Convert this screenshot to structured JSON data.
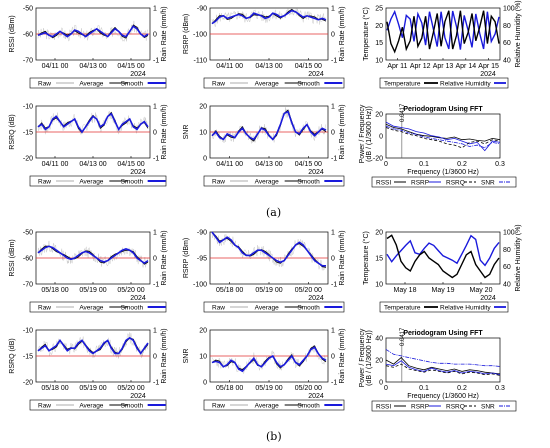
{
  "colors": {
    "raw": "#c8c8c8",
    "average": "#000000",
    "smooth": "#1a1adc",
    "rain_axis": "#8b1a8b",
    "humidity_axis": "#e0651a",
    "red_line": "#e03030",
    "fft_rssi": "#000000",
    "fft_rsrp": "#1a1adc",
    "fft_rsrq": "#000000",
    "fft_snr": "#1a1adc",
    "grid": "#dddddd"
  },
  "legends": {
    "signal": [
      "Raw",
      "Average",
      "Smooth"
    ],
    "temp": [
      "Temperature",
      "Relative Humidity"
    ],
    "fft": [
      "RSSI",
      "RSRP",
      "RSRQ",
      "SNR"
    ]
  },
  "captions": {
    "a": "(a)",
    "b": "(b)"
  },
  "common": {
    "rain_label": "Rain Rate (mm/h)",
    "rain_ticks": [
      "1",
      "0",
      "-1"
    ],
    "fft_title": "Periodogram Using FFT",
    "fft_xlabel": "Frequency (1/3600 Hz)",
    "fft_ylabel": "Power / Frequency (dB / (1/3600 Hz))",
    "fft_marker": "0.0417",
    "temp_label": "Temperature (°C)",
    "rh_label": "Relative Humidity (%)",
    "year": "2024"
  },
  "chart_data": [
    {
      "id": "a_rssi",
      "type": "line",
      "ylabel": "RSSI (dBm)",
      "yticks": [
        "-50",
        "-60",
        "-70"
      ],
      "ylim": [
        -70,
        -50
      ],
      "xticks": [
        "04/11 00",
        "04/13 00",
        "04/15 00"
      ],
      "values": [
        -60.5,
        -60,
        -59.5,
        -60.5,
        -61,
        -60,
        -59,
        -60,
        -61,
        -60,
        -58.5,
        -59,
        -60,
        -61,
        -60,
        -59,
        -58,
        -59,
        -60,
        -61,
        -59.5,
        -58,
        -59,
        -60.5,
        -61,
        -59,
        -57,
        -58,
        -60,
        -61,
        -60
      ]
    },
    {
      "id": "a_rsrp",
      "type": "line",
      "ylabel": "RSRP (dBm)",
      "yticks": [
        "-90",
        "-100",
        "-110"
      ],
      "ylim": [
        -110,
        -90
      ],
      "xticks": [
        "04/11 00",
        "04/13 00",
        "04/15 00"
      ],
      "values": [
        -96,
        -95,
        -93.5,
        -93,
        -94,
        -93.5,
        -93,
        -92.5,
        -93,
        -94,
        -93.5,
        -92,
        -92.5,
        -93,
        -94,
        -93.5,
        -92,
        -92.5,
        -93.5,
        -93,
        -92,
        -91,
        -91.5,
        -92.5,
        -93.5,
        -93,
        -93.5,
        -94,
        -94.5,
        -94,
        -94.5
      ]
    },
    {
      "id": "a_temp",
      "type": "line",
      "ylabel": "Temperature (°C)",
      "yticks": [
        "25",
        "20",
        "15",
        "10"
      ],
      "ylim": [
        8,
        27
      ],
      "rh_ticks": [
        "100",
        "80",
        "60",
        "40"
      ],
      "rh_lim": [
        30,
        100
      ],
      "xticks": [
        "Apr 11",
        "Apr 12",
        "Apr 13",
        "Apr 14",
        "Apr 15"
      ],
      "temperature": [
        22,
        14,
        11,
        15,
        20,
        12,
        15,
        24,
        13,
        16,
        24,
        12,
        18,
        25,
        13,
        22,
        26,
        12,
        17,
        26,
        14,
        18,
        25,
        15,
        20,
        26,
        14,
        24,
        22,
        14
      ],
      "humidity": [
        70,
        85,
        95,
        78,
        60,
        90,
        85,
        55,
        92,
        80,
        50,
        95,
        72,
        48,
        95,
        60,
        45,
        96,
        75,
        44,
        90,
        70,
        47,
        92,
        66,
        45,
        95,
        55,
        65,
        88
      ]
    },
    {
      "id": "a_rsrq",
      "type": "line",
      "ylabel": "RSRQ (dB)",
      "yticks": [
        "-10",
        "-15",
        "-20"
      ],
      "ylim": [
        -20,
        -10
      ],
      "xticks": [
        "04/11 00",
        "04/13 00",
        "04/15 00"
      ],
      "values": [
        -14,
        -13.5,
        -14.5,
        -14,
        -12.5,
        -12,
        -13,
        -14,
        -13.5,
        -13,
        -12.5,
        -14,
        -15,
        -14,
        -13,
        -12,
        -12.5,
        -14,
        -13.5,
        -12,
        -11.5,
        -13,
        -14.5,
        -13.5,
        -13,
        -12.5,
        -14,
        -14.5,
        -13.5,
        -13,
        -14
      ]
    },
    {
      "id": "a_snr",
      "type": "line",
      "ylabel": "SNR",
      "yticks": [
        "20",
        "10",
        "0"
      ],
      "ylim": [
        -4,
        24
      ],
      "xticks": [
        "04/11 00",
        "04/13 00",
        "04/15 00"
      ],
      "values": [
        8,
        10,
        7,
        6,
        9,
        8,
        7,
        10,
        12,
        9,
        7,
        6,
        9,
        12,
        11,
        8,
        6,
        9,
        14,
        20,
        21,
        15,
        10,
        9,
        12,
        14,
        10,
        8,
        10,
        12,
        11
      ]
    },
    {
      "id": "a_fft",
      "type": "line",
      "title": "Periodogram Using FFT",
      "ylabel": "Power / Frequency (dB / (1/3600 Hz))",
      "xlabel": "Frequency (1/3600 Hz)",
      "yticks": [
        "20",
        "0",
        "-20"
      ],
      "ylim": [
        -35,
        30
      ],
      "xticks": [
        "0",
        "0.1",
        "0.2",
        "0.3"
      ],
      "xlim": [
        0,
        0.3
      ],
      "x": [
        0,
        0.02,
        0.04,
        0.06,
        0.08,
        0.1,
        0.12,
        0.14,
        0.16,
        0.18,
        0.2,
        0.22,
        0.24,
        0.26,
        0.28,
        0.3
      ],
      "series": [
        {
          "name": "RSSI",
          "values": [
            15,
            10,
            8,
            4,
            0,
            -2,
            -3,
            -5,
            -6,
            -4,
            -8,
            -7,
            -9,
            -10,
            -6,
            -8
          ]
        },
        {
          "name": "RSRP",
          "values": [
            18,
            12,
            10,
            8,
            4,
            2,
            -2,
            -4,
            -8,
            -6,
            -10,
            -14,
            -12,
            -24,
            -10,
            -12
          ]
        },
        {
          "name": "RSRQ",
          "values": [
            10,
            6,
            4,
            0,
            -2,
            -6,
            -8,
            -10,
            -14,
            -16,
            -20,
            -12,
            -10,
            -14,
            -8,
            -10
          ]
        },
        {
          "name": "SNR",
          "values": [
            12,
            8,
            6,
            2,
            0,
            -4,
            -6,
            -8,
            -10,
            -12,
            -14,
            -18,
            -16,
            -20,
            -12,
            -14
          ]
        }
      ]
    },
    {
      "id": "b_rssi",
      "type": "line",
      "ylabel": "RSSI (dBm)",
      "yticks": [
        "-50",
        "-60",
        "-70"
      ],
      "ylim": [
        -70,
        -50
      ],
      "xticks": [
        "05/18 00",
        "05/19 00",
        "05/20 00"
      ],
      "values": [
        -58,
        -57,
        -56,
        -55.5,
        -56,
        -57,
        -58,
        -59,
        -60,
        -60.5,
        -60,
        -59,
        -58,
        -57.5,
        -58,
        -59,
        -60,
        -61,
        -61.5,
        -61,
        -60,
        -59,
        -58,
        -57,
        -56.5,
        -57,
        -58,
        -60,
        -61,
        -62,
        -61
      ]
    },
    {
      "id": "b_rsrp",
      "type": "line",
      "ylabel": "RSRP (dBm)",
      "yticks": [
        "-90",
        "-95",
        "-100"
      ],
      "ylim": [
        -100,
        -90
      ],
      "xticks": [
        "05/18 00",
        "05/19 00",
        "05/20 00"
      ],
      "values": [
        -90,
        -91,
        -92,
        -91.5,
        -91,
        -91.5,
        -92.5,
        -93,
        -94,
        -94.5,
        -94.5,
        -94,
        -93.5,
        -93.5,
        -94,
        -94.5,
        -95,
        -95.5,
        -95.8,
        -95.5,
        -94.5,
        -93.5,
        -92.5,
        -92,
        -92.5,
        -93.5,
        -94.5,
        -95.5,
        -96,
        -96.5,
        -96.5
      ]
    },
    {
      "id": "b_temp",
      "type": "line",
      "ylabel": "Temperature (°C)",
      "yticks": [
        "20",
        "15",
        "10"
      ],
      "ylim": [
        8,
        24
      ],
      "rh_ticks": [
        "100",
        "80",
        "60",
        "40"
      ],
      "rh_lim": [
        30,
        100
      ],
      "xticks": [
        "May 18",
        "May 19",
        "May 20"
      ],
      "temperature": [
        22,
        23,
        20,
        15,
        13,
        12,
        15,
        17,
        18,
        16,
        15,
        14,
        12,
        11,
        10,
        11,
        14,
        17,
        18,
        14,
        12,
        10,
        11,
        14,
        16
      ],
      "humidity": [
        70,
        60,
        68,
        75,
        82,
        88,
        72,
        70,
        78,
        85,
        82,
        75,
        68,
        65,
        62,
        58,
        70,
        82,
        95,
        90,
        62,
        55,
        65,
        78,
        86
      ]
    },
    {
      "id": "b_rsrq",
      "type": "line",
      "ylabel": "RSRQ (dB)",
      "yticks": [
        "-10",
        "-15",
        "-20"
      ],
      "ylim": [
        -20,
        -10
      ],
      "xticks": [
        "05/18 00",
        "05/19 00",
        "05/20 00"
      ],
      "values": [
        -14,
        -13.5,
        -13,
        -14,
        -13.5,
        -13,
        -12,
        -13,
        -14,
        -13.5,
        -13.5,
        -12.5,
        -12,
        -13,
        -14,
        -14.5,
        -14,
        -13.5,
        -12.5,
        -12,
        -13.5,
        -14.5,
        -14.5,
        -13.5,
        -12,
        -11.5,
        -12,
        -13.5,
        -14.5,
        -13.5,
        -12.5
      ]
    },
    {
      "id": "b_snr",
      "type": "line",
      "ylabel": "SNR",
      "yticks": [
        "20",
        "10",
        "0"
      ],
      "ylim": [
        -2,
        22
      ],
      "xticks": [
        "05/18 00",
        "05/19 00",
        "05/20 00"
      ],
      "values": [
        7,
        7.5,
        7,
        5,
        6,
        8,
        7,
        4,
        3,
        5,
        7,
        9,
        6,
        5,
        7,
        9,
        10,
        7,
        5,
        6,
        8,
        10,
        7,
        6,
        8,
        10,
        13,
        14,
        11,
        9,
        8
      ]
    },
    {
      "id": "b_fft",
      "type": "line",
      "title": "Periodogram Using FFT",
      "ylabel": "Power / Frequency (dB / (1/3600 Hz))",
      "xlabel": "Frequency (1/3600 Hz)",
      "yticks": [
        "40",
        "20",
        "0"
      ],
      "ylim": [
        -12,
        42
      ],
      "xticks": [
        "0",
        "0.1",
        "0.2",
        "0.3"
      ],
      "xlim": [
        0,
        0.3
      ],
      "x": [
        0,
        0.02,
        0.04,
        0.06,
        0.08,
        0.1,
        0.12,
        0.14,
        0.16,
        0.18,
        0.2,
        0.22,
        0.24,
        0.26,
        0.28,
        0.3
      ],
      "series": [
        {
          "name": "RSSI",
          "values": [
            15,
            10,
            18,
            8,
            5,
            3,
            6,
            4,
            2,
            4,
            1,
            3,
            2,
            0,
            -1,
            -2
          ]
        },
        {
          "name": "RSRP",
          "values": [
            10,
            8,
            14,
            6,
            3,
            1,
            5,
            2,
            0,
            2,
            -1,
            1,
            0,
            -2,
            -1,
            -3
          ]
        },
        {
          "name": "RSRQ",
          "values": [
            8,
            6,
            10,
            4,
            2,
            0,
            3,
            1,
            -1,
            1,
            -2,
            0,
            -1,
            -3,
            -2,
            -4
          ]
        },
        {
          "name": "SNR",
          "values": [
            28,
            22,
            20,
            18,
            16,
            14,
            12,
            11,
            11,
            10,
            10,
            10,
            9,
            8,
            8,
            7
          ]
        }
      ]
    }
  ]
}
